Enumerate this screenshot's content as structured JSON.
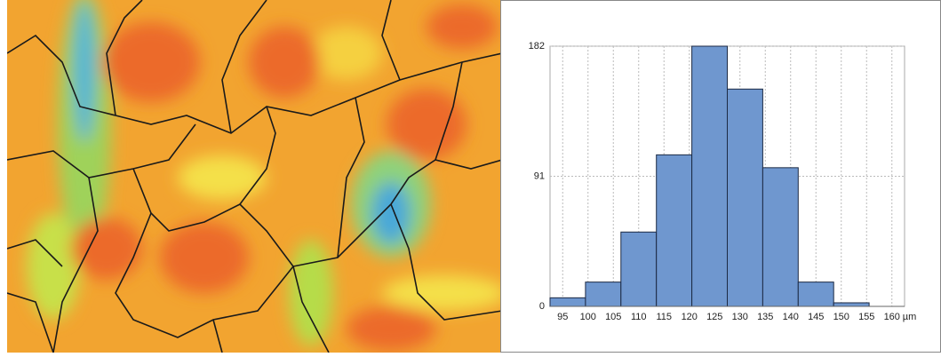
{
  "chart_data": {
    "type": "histogram",
    "bins": [
      92.5,
      99.5,
      106.5,
      113.5,
      120.5,
      127.5,
      134.5,
      141.5,
      148.5,
      155.5
    ],
    "counts": [
      6,
      17,
      52,
      106,
      182,
      152,
      97,
      17,
      2.5
    ],
    "color": "#6f97cf",
    "x_label": "µm",
    "xlim": [
      92.5,
      162.5
    ],
    "xticks": [
      95,
      100,
      105,
      110,
      115,
      120,
      125,
      130,
      135,
      140,
      145,
      150,
      155,
      160
    ],
    "ylim": [
      0,
      182
    ],
    "yticks": [
      0,
      91,
      182
    ],
    "grid": true
  }
}
